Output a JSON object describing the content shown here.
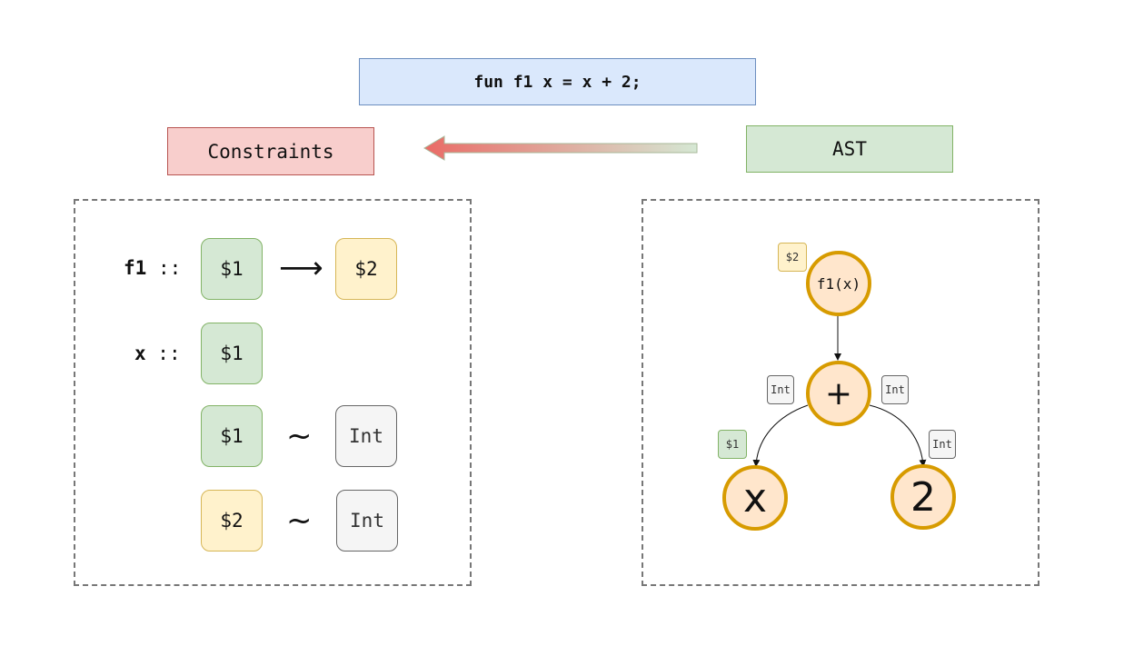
{
  "code": "fun f1 x = x + 2;",
  "titles": {
    "constraints": "Constraints",
    "ast": "AST"
  },
  "constraints": {
    "f1_label": "f1",
    "f1_sep": " ::",
    "x_label": "x",
    "x_sep": " ::",
    "arrow": "⟶",
    "tilde": "~",
    "row1": {
      "left": "$1",
      "right": "$2"
    },
    "row2": {
      "left": "$1"
    },
    "row3": {
      "left": "$1",
      "right": "Int"
    },
    "row4": {
      "left": "$2",
      "right": "Int"
    }
  },
  "ast": {
    "root": {
      "label": "f1(x)",
      "type": "$2"
    },
    "plus": {
      "label": "+",
      "left_type": "Int",
      "right_type": "Int"
    },
    "x": {
      "label": "x",
      "type": "$1"
    },
    "two": {
      "label": "2",
      "type": "Int"
    }
  },
  "colors": {
    "code_fill": "#dae8fc",
    "constraints_fill": "#f8cecc",
    "ast_fill": "#d5e8d4",
    "node_fill": "#ffe6cc",
    "node_stroke": "#d79b00",
    "green_fill": "#d5e8d4",
    "yellow_fill": "#fff2cc",
    "grey_fill": "#f5f5f5"
  }
}
